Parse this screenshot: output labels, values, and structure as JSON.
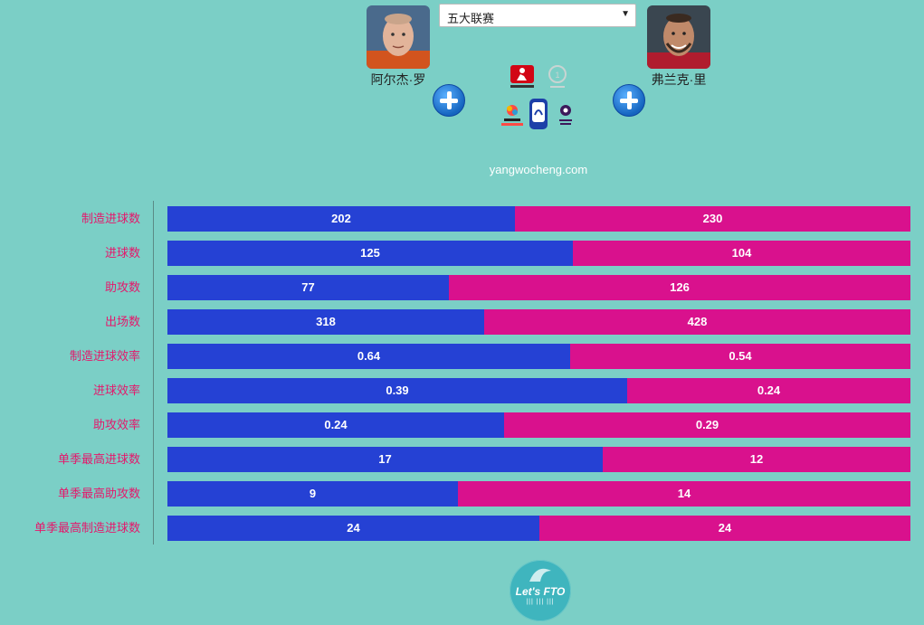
{
  "header": {
    "league_select_value": "五大联赛",
    "left_player_name": "阿尔杰·罗",
    "right_player_name": "弗兰克·里",
    "watermark": "yangwocheng.com"
  },
  "league_logos": [
    "bundesliga-logo",
    "ligue1-logo",
    "laliga-logo",
    "serie-a-logo",
    "premier-league-logo"
  ],
  "brand": {
    "main": "Let's FTO",
    "sub": "||| ||| |||"
  },
  "colors": {
    "left": "#2541d4",
    "right": "#d9118d",
    "label": "#e5176b",
    "background": "#7bcfc6"
  },
  "chart_data": {
    "type": "bar",
    "orientation": "horizontal",
    "stacked_percent": true,
    "categories": [
      "制造进球数",
      "进球数",
      "助攻数",
      "出场数",
      "制造进球效率",
      "进球效率",
      "助攻效率",
      "单季最高进球数",
      "单季最高助攻数",
      "单季最高制造进球数"
    ],
    "series": [
      {
        "name": "阿尔杰·罗",
        "values": [
          202,
          125,
          77,
          318,
          0.64,
          0.39,
          0.24,
          17,
          9,
          24
        ]
      },
      {
        "name": "弗兰克·里",
        "values": [
          230,
          104,
          126,
          428,
          0.54,
          0.24,
          0.29,
          12,
          14,
          24
        ]
      }
    ],
    "legend": "none",
    "grid": false
  }
}
